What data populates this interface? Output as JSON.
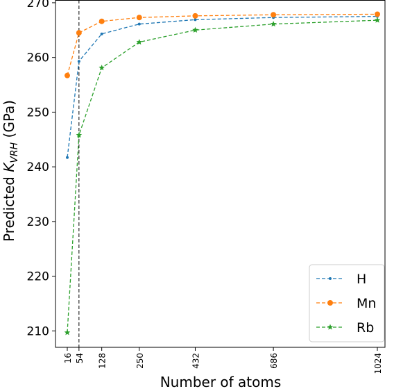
{
  "chart_data": {
    "type": "line",
    "title": "",
    "xlabel": "Number of atoms",
    "ylabel": "Predicted K_VRH (GPa)",
    "ylabel_prefix": "Predicted ",
    "ylabel_symbol": "K",
    "ylabel_subscript": "VRH",
    "ylabel_suffix": " (GPa)",
    "x": [
      16,
      54,
      128,
      250,
      432,
      686,
      1024
    ],
    "x_tick_labels": [
      "16",
      "54",
      "128",
      "250",
      "432",
      "686",
      "1024"
    ],
    "ylim": [
      207,
      270.5
    ],
    "y_ticks": [
      210,
      220,
      230,
      240,
      250,
      260,
      270
    ],
    "y_tick_labels": [
      "210",
      "220",
      "230",
      "240",
      "250",
      "260",
      "270"
    ],
    "vertical_reference_line_x": 54,
    "grid": false,
    "legend_position": "lower-right",
    "series": [
      {
        "name": "H",
        "color": "#1f77b4",
        "marker": "point",
        "values": [
          241.7,
          259.3,
          264.3,
          266.1,
          266.9,
          267.3,
          267.5
        ]
      },
      {
        "name": "Mn",
        "color": "#ff7f0e",
        "marker": "circle",
        "values": [
          256.7,
          264.5,
          266.6,
          267.3,
          267.6,
          267.8,
          267.9
        ]
      },
      {
        "name": "Rb",
        "color": "#2ca02c",
        "marker": "star",
        "values": [
          209.7,
          245.8,
          258.1,
          262.8,
          265.0,
          266.1,
          266.8
        ]
      }
    ]
  }
}
